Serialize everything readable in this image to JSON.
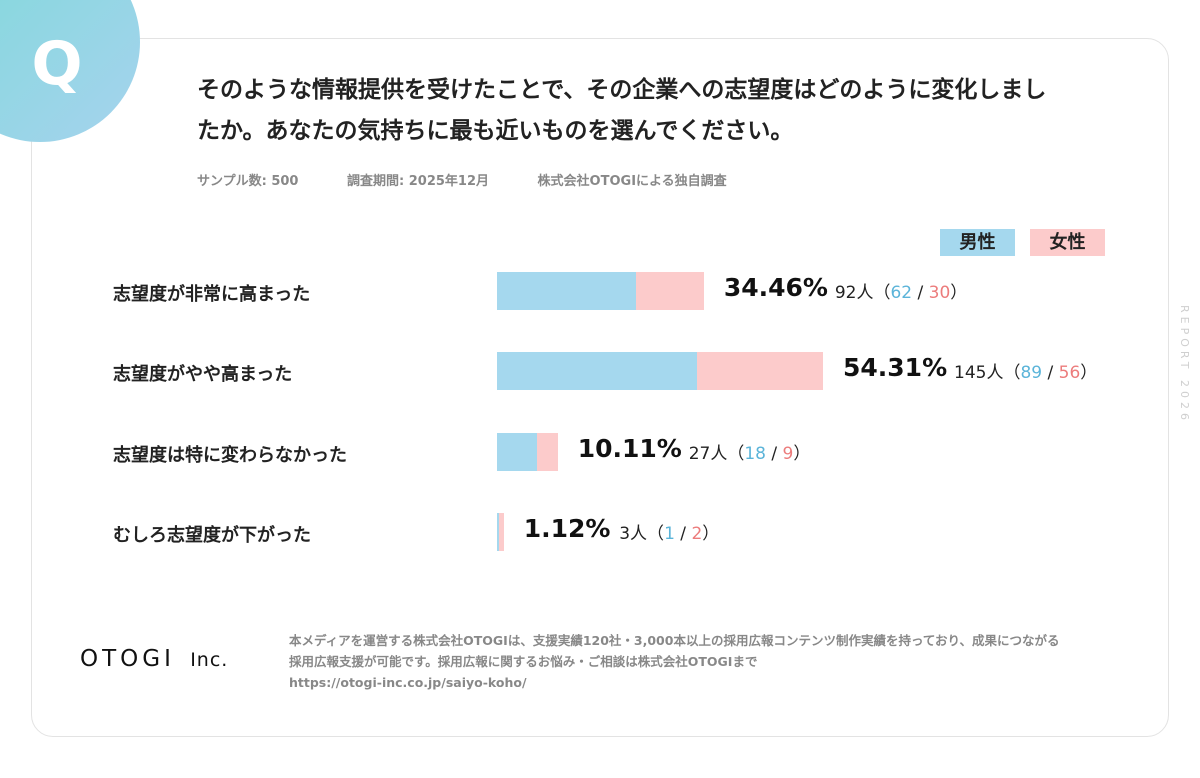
{
  "badge": {
    "letter": "Q"
  },
  "question": {
    "line1": "そのような情報提供を受けたことで、その企業への志望度はどのように変化しまし",
    "line2": "たか。あなたの気持ちに最も近いものを選んでください。"
  },
  "meta": {
    "sample": "サンプル数:  500",
    "period": "調査期間: 2025年12月",
    "source": "株式会社OTOGIによる独自調査"
  },
  "legend": {
    "male": "男性",
    "female": "女性"
  },
  "colors": {
    "male": "#a5d8ee",
    "female": "#fccbcb",
    "male_text": "#5bb4d9",
    "female_text": "#ec7c7c"
  },
  "chart_data": {
    "type": "bar",
    "orientation": "horizontal",
    "stacked": true,
    "categories": [
      "志望度が非常に高まった",
      "志望度がやや高まった",
      "志望度は特に変わらなかった",
      "むしろ志望度が下がった"
    ],
    "series": [
      {
        "name": "男性",
        "values": [
          62,
          89,
          18,
          1
        ]
      },
      {
        "name": "女性",
        "values": [
          30,
          56,
          9,
          2
        ]
      }
    ],
    "totals": [
      92,
      145,
      27,
      3
    ],
    "percents": [
      "34.46%",
      "54.31%",
      "10.11%",
      "1.12%"
    ],
    "count_labels": [
      "92人",
      "145人",
      "27人",
      "3人"
    ],
    "sample_size": 500
  },
  "side_text": "REPORT 2026",
  "logo": {
    "main": "OTOGI",
    "suffix": "Inc."
  },
  "footer": {
    "line1": "本メディアを運営する株式会社OTOGIは、支援実績120社・3,000本以上の採用広報コンテンツ制作実績を持っており、成果につながる",
    "line2": "採用広報支援が可能です。採用広報に関するお悩み・ご相談は株式会社OTOGIまで",
    "line3": "https://otogi-inc.co.jp/saiyo-koho/"
  }
}
